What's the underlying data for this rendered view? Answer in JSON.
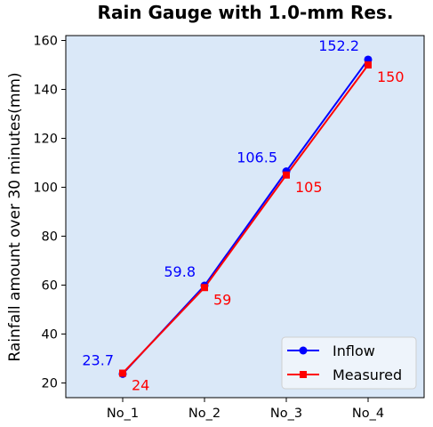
{
  "chart_data": {
    "type": "line",
    "title": "Rain Gauge with 1.0-mm Res.",
    "xlabel": "",
    "ylabel": "Rainfall amount over 30 minutes(mm)",
    "categories": [
      "No_1",
      "No_2",
      "No_3",
      "No_4"
    ],
    "ylim": [
      14,
      162
    ],
    "yticks": [
      20,
      40,
      60,
      80,
      100,
      120,
      140,
      160
    ],
    "grid": false,
    "legend_position": "lower-right",
    "plot_background": "#dae8f8",
    "series": [
      {
        "name": "Inflow",
        "values": [
          23.7,
          59.8,
          106.5,
          152.2
        ],
        "labels": [
          "23.7",
          "59.8",
          "106.5",
          "152.2"
        ],
        "color": "#0000ff",
        "marker": "circle"
      },
      {
        "name": "Measured",
        "values": [
          24,
          59,
          105,
          150
        ],
        "labels": [
          "24",
          "59",
          "105",
          "150"
        ],
        "color": "#ff0000",
        "marker": "square"
      }
    ]
  }
}
